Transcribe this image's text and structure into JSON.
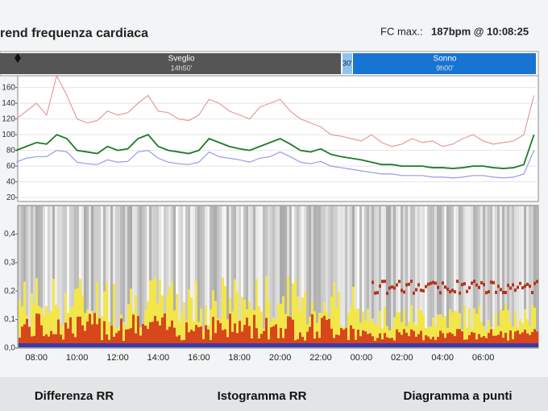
{
  "header": {
    "title": "rend frequenza cardiaca",
    "fc_max_label": "FC max.:",
    "fc_max_value": "187bpm @ 10:08:25"
  },
  "phases": [
    {
      "label": "Sveglio",
      "duration": "14h50'"
    },
    {
      "label": "30'"
    },
    {
      "label": "Sonno",
      "duration": "9h00'"
    }
  ],
  "chart_data": [
    {
      "type": "line",
      "categories": [
        null,
        null,
        "08:00",
        null,
        null,
        null,
        "10:00",
        null,
        null,
        null,
        "12:00",
        null,
        null,
        null,
        "14:00",
        null,
        null,
        null,
        "16:00",
        null,
        null,
        null,
        "18:00",
        null,
        null,
        null,
        "20:00",
        null,
        null,
        null,
        "22:00",
        null,
        null,
        null,
        "00:00",
        null,
        null,
        null,
        "02:00",
        null,
        null,
        null,
        "04:00",
        null,
        null,
        null,
        "06:00",
        null,
        null,
        null,
        null,
        null
      ],
      "series": [
        {
          "color": "#e89a9a",
          "values": [
            120,
            130,
            140,
            125,
            175,
            150,
            120,
            115,
            118,
            130,
            125,
            128,
            140,
            150,
            130,
            128,
            120,
            118,
            125,
            145,
            140,
            130,
            125,
            120,
            135,
            140,
            145,
            130,
            120,
            115,
            110,
            100,
            98,
            95,
            92,
            100,
            90,
            85,
            88,
            95,
            90,
            92,
            85,
            88,
            95,
            100,
            92,
            88,
            90,
            92,
            100,
            150
          ]
        },
        {
          "color": "#9a9ae8",
          "values": [
            65,
            70,
            72,
            72,
            80,
            78,
            65,
            63,
            62,
            68,
            65,
            66,
            78,
            80,
            70,
            65,
            63,
            62,
            65,
            78,
            72,
            70,
            68,
            65,
            70,
            72,
            78,
            72,
            65,
            63,
            66,
            60,
            58,
            56,
            54,
            52,
            50,
            50,
            48,
            48,
            48,
            46,
            46,
            45,
            46,
            48,
            48,
            46,
            45,
            46,
            50,
            80
          ]
        },
        {
          "color": "#1f7a2a",
          "values": [
            80,
            85,
            90,
            88,
            100,
            95,
            80,
            78,
            76,
            85,
            80,
            82,
            95,
            100,
            85,
            80,
            78,
            76,
            80,
            95,
            90,
            85,
            82,
            80,
            85,
            90,
            95,
            88,
            80,
            78,
            82,
            75,
            72,
            70,
            68,
            65,
            62,
            62,
            60,
            60,
            60,
            58,
            58,
            57,
            58,
            60,
            60,
            58,
            57,
            58,
            62,
            100
          ]
        }
      ],
      "ylim": [
        15,
        175
      ],
      "yticks": [
        20,
        40,
        60,
        80,
        100,
        120,
        140,
        160
      ],
      "grid": true
    },
    {
      "type": "spectrogram",
      "ylim": [
        0,
        0.5
      ],
      "yticks": [
        {
          "value": 0,
          "label": "0,0"
        },
        {
          "value": 0.1,
          "label": "0,1"
        },
        {
          "value": 0.2,
          "label": "0,2"
        },
        {
          "value": 0.3,
          "label": "0,3"
        },
        {
          "value": 0.4,
          "label": "0,4"
        }
      ]
    }
  ],
  "tabs": [
    "Differenza RR",
    "Istogramma RR",
    "Diagramma a punti"
  ]
}
